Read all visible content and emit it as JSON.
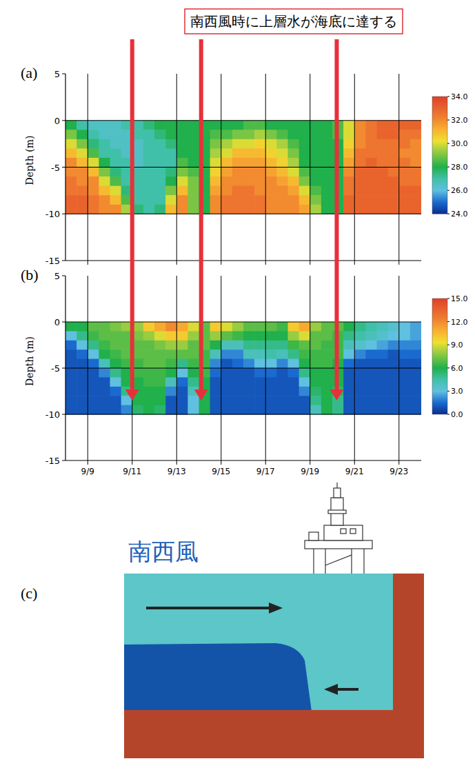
{
  "annotation": {
    "text": "南西風時に上層水が海底に達する",
    "x": [
      11,
      14.1,
      20.2
    ],
    "arrow_depth": -8.5
  },
  "chart_data": [
    {
      "type": "heatmap",
      "title": "(a)",
      "y_label": "Depth (m)",
      "grid": true,
      "tick_labels": "y",
      "xlim": [
        8,
        24
      ],
      "ylim": [
        -15,
        5
      ],
      "xticks": [
        {
          "value": 9,
          "label": "9/9"
        },
        {
          "value": 11,
          "label": "9/11"
        },
        {
          "value": 13,
          "label": "9/13"
        },
        {
          "value": 15,
          "label": "9/15"
        },
        {
          "value": 17,
          "label": "9/17"
        },
        {
          "value": 19,
          "label": "9/19"
        },
        {
          "value": 21,
          "label": "9/21"
        },
        {
          "value": 23,
          "label": "9/23"
        }
      ],
      "yticks": [
        -15,
        -10,
        -5,
        0,
        5
      ],
      "colorbar_lim": [
        24,
        34
      ],
      "colorbar_ticks": [
        {
          "value": 24,
          "label": "24.0"
        },
        {
          "value": 26,
          "label": "26.0"
        },
        {
          "value": 28,
          "label": "28.0"
        },
        {
          "value": 30,
          "label": "30.0"
        },
        {
          "value": 32,
          "label": "32.0"
        },
        {
          "value": 34,
          "label": "34.0"
        }
      ],
      "x": [
        8.25,
        8.75,
        9.25,
        9.75,
        10.25,
        10.75,
        11.25,
        11.75,
        12.25,
        12.75,
        13.25,
        13.75,
        14.25,
        14.75,
        15.25,
        15.75,
        16.25,
        16.75,
        17.25,
        17.75,
        18.25,
        18.75,
        19.25,
        19.75,
        20.25,
        20.75,
        21.25,
        21.75,
        22.25,
        22.75,
        23.25,
        23.75
      ],
      "y": [
        -0.5,
        -1.5,
        -2.5,
        -3.5,
        -4.5,
        -5.5,
        -6.5,
        -7.5,
        -8.5,
        -9.5
      ],
      "values": [
        [
          28,
          29,
          30,
          31,
          32,
          32,
          32.5,
          32.5,
          33,
          33
        ],
        [
          27,
          28,
          29,
          30,
          31,
          32,
          32,
          32.5,
          33,
          33
        ],
        [
          26.5,
          27,
          27.5,
          28.5,
          30,
          31,
          32,
          32,
          32.5,
          32.5
        ],
        [
          26.5,
          26.5,
          27,
          27,
          28,
          29,
          30,
          31,
          32,
          32
        ],
        [
          26.5,
          26.5,
          26.5,
          27,
          27,
          27.5,
          28.5,
          30,
          31,
          32
        ],
        [
          27,
          26.5,
          26.5,
          26.5,
          27,
          27,
          27,
          27.5,
          28.5,
          29.5
        ],
        [
          27,
          27,
          26.5,
          26.5,
          26.5,
          27,
          27,
          27,
          27,
          27.5
        ],
        [
          27.5,
          27,
          27,
          27,
          27,
          27,
          27,
          27,
          27,
          27
        ],
        [
          28,
          27.5,
          27,
          27,
          27,
          27,
          27,
          27,
          27,
          27.5
        ],
        [
          28,
          28,
          27.5,
          27,
          27,
          27.5,
          28,
          29,
          30,
          31
        ],
        [
          28,
          28,
          28,
          28,
          28.5,
          29,
          30,
          31,
          32,
          32
        ],
        [
          28,
          28,
          28,
          28,
          28,
          28.5,
          29,
          29,
          29,
          29
        ],
        [
          28,
          28,
          28,
          28,
          28,
          28,
          28,
          28,
          28,
          28
        ],
        [
          28,
          28.5,
          29,
          29.5,
          30,
          30.5,
          31,
          31.5,
          32,
          32
        ],
        [
          28,
          28.5,
          29.5,
          30,
          31,
          31.5,
          32,
          32,
          32.5,
          32.5
        ],
        [
          28,
          29,
          30,
          31,
          31.5,
          32,
          32,
          32.5,
          32.5,
          32.5
        ],
        [
          28.5,
          29,
          30,
          31,
          31.5,
          32,
          32,
          32.5,
          32.5,
          32.5
        ],
        [
          28.5,
          29.5,
          30.5,
          31,
          31.5,
          32,
          32,
          32,
          32.5,
          32.5
        ],
        [
          28,
          29,
          30,
          30.5,
          31,
          31.5,
          32,
          32,
          32,
          32
        ],
        [
          28,
          28.5,
          29.5,
          30,
          30.5,
          31,
          31.5,
          32,
          32,
          32
        ],
        [
          28,
          28,
          28.5,
          29,
          29.5,
          30,
          31,
          31.5,
          32,
          32
        ],
        [
          28,
          28,
          28,
          28,
          28,
          28.5,
          29,
          30,
          31,
          31.5
        ],
        [
          28,
          28,
          28,
          28,
          28,
          28,
          28,
          28.5,
          29,
          29.5
        ],
        [
          28,
          28,
          28,
          28,
          28,
          28,
          28,
          28,
          28,
          28
        ],
        [
          28.5,
          28.5,
          28,
          28,
          28,
          28,
          28,
          28,
          28,
          28
        ],
        [
          30,
          30,
          30.5,
          31,
          31.5,
          32,
          32.5,
          32.5,
          33,
          33
        ],
        [
          32,
          32,
          32,
          32.5,
          32.5,
          33,
          33,
          33,
          33,
          33
        ],
        [
          32.5,
          32.5,
          32.5,
          32.5,
          33,
          33,
          33,
          33,
          33,
          33
        ],
        [
          33,
          33,
          32.5,
          32.5,
          32.5,
          33,
          33,
          33,
          33,
          33
        ],
        [
          33,
          33,
          32.5,
          32.5,
          32.5,
          32.5,
          33,
          33,
          33,
          33
        ],
        [
          33,
          32.5,
          32.5,
          32,
          32.5,
          32.5,
          32.5,
          33,
          33,
          33
        ],
        [
          33,
          32.5,
          32,
          32,
          32,
          32.5,
          32.5,
          33,
          33,
          33
        ]
      ]
    },
    {
      "type": "heatmap",
      "title": "(b)",
      "y_label": "Depth (m)",
      "grid": true,
      "xlim": [
        8,
        24
      ],
      "ylim": [
        -15,
        5
      ],
      "xticks": [
        {
          "value": 9,
          "label": "9/9"
        },
        {
          "value": 11,
          "label": "9/11"
        },
        {
          "value": 13,
          "label": "9/13"
        },
        {
          "value": 15,
          "label": "9/15"
        },
        {
          "value": 17,
          "label": "9/17"
        },
        {
          "value": 19,
          "label": "9/19"
        },
        {
          "value": 21,
          "label": "9/21"
        },
        {
          "value": 23,
          "label": "9/23"
        }
      ],
      "yticks": [
        -15,
        -10,
        -5,
        0,
        5
      ],
      "colorbar_lim": [
        0,
        15
      ],
      "colorbar_ticks": [
        {
          "value": 0,
          "label": "0.0"
        },
        {
          "value": 3,
          "label": "3.0"
        },
        {
          "value": 6,
          "label": "6.0"
        },
        {
          "value": 9,
          "label": "9.0"
        },
        {
          "value": 12,
          "label": "12.0"
        },
        {
          "value": 15,
          "label": "15.0"
        }
      ],
      "x": [
        8.25,
        8.75,
        9.25,
        9.75,
        10.25,
        10.75,
        11.25,
        11.75,
        12.25,
        12.75,
        13.25,
        13.75,
        14.25,
        14.75,
        15.25,
        15.75,
        16.25,
        16.75,
        17.25,
        17.75,
        18.25,
        18.75,
        19.25,
        19.75,
        20.25,
        20.75,
        21.25,
        21.75,
        22.25,
        22.75,
        23.25,
        23.75
      ],
      "y": [
        -0.5,
        -1.5,
        -2.5,
        -3.5,
        -4.5,
        -5.5,
        -6.5,
        -7.5,
        -8.5,
        -9.5
      ],
      "values": [
        [
          6,
          3,
          1.5,
          1,
          1,
          1,
          1,
          1,
          1,
          1
        ],
        [
          6,
          5,
          3,
          1.5,
          1,
          1,
          1,
          1,
          1,
          1
        ],
        [
          7,
          6.5,
          5,
          3,
          1.5,
          1,
          1,
          1,
          1,
          1
        ],
        [
          7,
          7,
          6.5,
          6,
          4,
          2,
          1,
          1,
          1,
          1
        ],
        [
          7.5,
          7,
          7,
          6.5,
          6,
          5,
          3,
          1.5,
          1,
          1
        ],
        [
          8,
          7,
          7,
          7,
          6.5,
          6,
          6,
          5,
          3,
          2
        ],
        [
          8,
          7.5,
          7,
          7,
          6.5,
          6.5,
          6,
          6,
          6,
          5.5
        ],
        [
          10,
          8,
          7,
          7,
          7,
          6.5,
          6.5,
          6,
          6,
          6
        ],
        [
          11,
          9,
          7.5,
          7,
          7,
          6.5,
          6.5,
          6,
          6,
          5.5
        ],
        [
          12,
          10,
          8,
          7,
          6.5,
          6,
          4,
          2,
          1,
          1
        ],
        [
          11,
          10,
          8,
          7,
          5,
          3,
          1.5,
          1,
          1,
          1
        ],
        [
          9,
          8,
          7,
          7,
          6.5,
          6,
          5,
          4,
          3,
          3
        ],
        [
          7,
          7,
          7,
          6.5,
          6.5,
          6.5,
          6,
          6,
          6,
          6
        ],
        [
          10,
          8,
          6,
          4,
          2,
          1.5,
          1,
          1,
          1,
          1
        ],
        [
          9,
          7,
          4,
          2,
          1,
          1,
          1,
          1,
          1,
          1
        ],
        [
          8,
          6.5,
          4,
          2,
          1.5,
          1,
          1,
          1,
          1,
          1
        ],
        [
          7,
          6,
          5,
          4,
          2,
          1,
          1,
          1,
          1,
          1
        ],
        [
          7,
          6,
          5,
          4,
          3,
          1.5,
          1,
          1,
          1,
          1
        ],
        [
          7,
          6,
          5,
          4.5,
          3,
          1.5,
          1,
          1,
          1,
          1
        ],
        [
          6.5,
          6,
          5,
          4,
          2,
          1,
          1,
          1,
          1,
          1
        ],
        [
          10,
          8,
          6.5,
          5,
          3,
          1.5,
          1,
          1,
          1,
          1
        ],
        [
          11,
          9,
          7,
          6.5,
          6,
          5,
          3,
          2,
          1,
          1
        ],
        [
          8,
          7,
          7,
          6.5,
          6.5,
          6,
          6,
          5.5,
          5,
          4
        ],
        [
          7,
          7,
          6.5,
          6.5,
          6.5,
          6,
          6,
          6,
          6,
          6
        ],
        [
          7,
          6.5,
          6.5,
          6.5,
          6,
          6,
          6,
          5.5,
          5,
          5
        ],
        [
          6,
          5,
          4,
          3,
          1.5,
          1,
          1,
          1,
          1,
          1
        ],
        [
          5,
          4.5,
          3.5,
          2,
          1,
          1,
          1,
          1,
          1,
          1
        ],
        [
          4.5,
          4,
          3,
          1.5,
          1,
          1,
          1,
          1,
          1,
          1
        ],
        [
          4,
          3.5,
          2.5,
          1.5,
          1,
          1,
          1,
          1,
          1,
          1
        ],
        [
          3.5,
          3,
          2,
          1,
          1,
          1,
          1,
          1,
          1,
          1
        ],
        [
          3,
          3,
          2,
          1.5,
          1,
          1,
          1,
          1,
          1,
          1
        ],
        [
          2.5,
          2.5,
          2,
          1.5,
          1,
          1,
          1,
          1,
          1,
          1
        ]
      ]
    }
  ],
  "diagram": {
    "label": "(c)",
    "wind_label": "南西風"
  }
}
